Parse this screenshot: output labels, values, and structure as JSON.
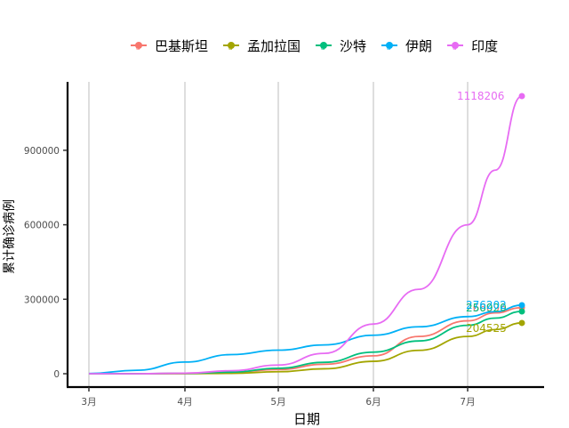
{
  "chart_data": {
    "type": "line",
    "title": "",
    "xlabel": "日期",
    "ylabel": "累计确诊病例",
    "x_ticks": [
      "3月",
      "4月",
      "5月",
      "6月",
      "7月"
    ],
    "y_ticks": [
      "0",
      "300000",
      "600000",
      "900000"
    ],
    "ylim": [
      0,
      1150000
    ],
    "grid": "vertical major gridlines",
    "legend_position": "top",
    "x": [
      "3月1日",
      "3月15日",
      "4月1日",
      "4月15日",
      "5月1日",
      "5月15日",
      "6月1日",
      "6月15日",
      "7月1日",
      "7月10日",
      "7月21日"
    ],
    "series": [
      {
        "name": "巴基斯坦",
        "color": "#F8766D",
        "values": [
          0,
          50,
          2000,
          6500,
          17000,
          38000,
          72000,
          150000,
          213000,
          245000,
          266096
        ],
        "end_label": "266096"
      },
      {
        "name": "孟加拉国",
        "color": "#A3A500",
        "values": [
          0,
          0,
          50,
          1500,
          8000,
          20000,
          50000,
          94000,
          150000,
          178000,
          204525
        ],
        "end_label": "204525"
      },
      {
        "name": "沙特",
        "color": "#00BF7D",
        "values": [
          0,
          100,
          1500,
          6500,
          22000,
          46000,
          87000,
          132000,
          195000,
          224000,
          250920
        ],
        "end_label": "250920"
      },
      {
        "name": "伊朗",
        "color": "#00B0F6",
        "values": [
          1000,
          14000,
          47000,
          77000,
          95000,
          116000,
          155000,
          189000,
          230000,
          250000,
          276202
        ],
        "end_label": "276202"
      },
      {
        "name": "印度",
        "color": "#E76BF3",
        "values": [
          0,
          100,
          2000,
          12000,
          35000,
          82000,
          200000,
          340000,
          600000,
          820000,
          1118206
        ],
        "end_label": "1118206"
      }
    ]
  },
  "legend": {
    "items": [
      {
        "label": "巴基斯坦",
        "color": "#F8766D"
      },
      {
        "label": "孟加拉国",
        "color": "#A3A500"
      },
      {
        "label": "沙特",
        "color": "#00BF7D"
      },
      {
        "label": "伊朗",
        "color": "#00B0F6"
      },
      {
        "label": "印度",
        "color": "#E76BF3"
      }
    ]
  },
  "axes": {
    "x_title": "日期",
    "y_title": "累计确诊病例"
  }
}
